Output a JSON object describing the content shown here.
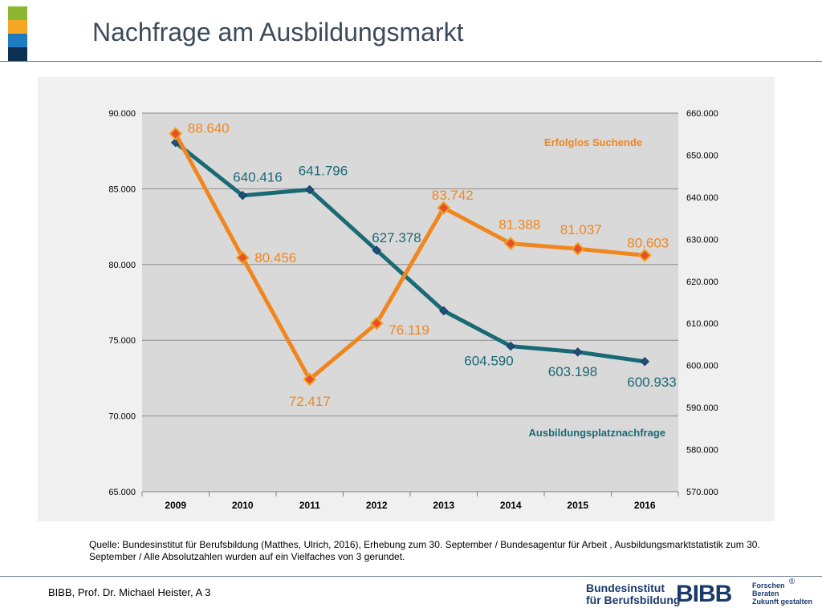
{
  "header": {
    "title": "Nachfrage am Ausbildungsmarkt"
  },
  "brand_colors": [
    "#8db631",
    "#f5a623",
    "#1e7bc2",
    "#0b3050"
  ],
  "chart_data": {
    "type": "line",
    "categories": [
      "2009",
      "2010",
      "2011",
      "2012",
      "2013",
      "2014",
      "2015",
      "2016"
    ],
    "y_left": {
      "ylim": [
        65000,
        90000
      ],
      "ticks": [
        "65.000",
        "70.000",
        "75.000",
        "80.000",
        "85.000",
        "90.000"
      ]
    },
    "y_right": {
      "ylim": [
        570000,
        660000
      ],
      "ticks": [
        "570.000",
        "580.000",
        "590.000",
        "600.000",
        "610.000",
        "620.000",
        "630.000",
        "640.000",
        "650.000",
        "660.000"
      ]
    },
    "grid": "horizontal",
    "series": [
      {
        "name": "Erfolglos Suchende",
        "axis": "left",
        "color": "#f0861e",
        "values": [
          88640,
          80456,
          72417,
          76119,
          83742,
          81388,
          81037,
          80603
        ],
        "labels": [
          "88.640",
          "80.456",
          "72.417",
          "76.119",
          "83.742",
          "81.388",
          "81.037",
          "80.603"
        ]
      },
      {
        "name": "Ausbildungsplatznachfrage",
        "axis": "right",
        "color": "#1a6a75",
        "values": [
          653000,
          640416,
          641796,
          627378,
          613000,
          604590,
          603198,
          600933
        ],
        "labels": [
          "",
          "640.416",
          "641.796",
          "627.378",
          "",
          "604.590",
          "603.198",
          "600.933"
        ]
      }
    ]
  },
  "source": "Quelle: Bundesinstitut für Berufsbildung (Matthes, Ulrich, 2016), Erhebung zum 30. September / Bundesagentur für Arbeit , Ausbildungsmarktstatistik zum 30. September / Alle Absolutzahlen wurden auf ein Vielfaches von 3 gerundet.",
  "footer": {
    "author": "BIBB, Prof. Dr. Michael Heister, A 3"
  },
  "logo": {
    "line1": "Bundesinstitut",
    "line2": "für Berufsbildung",
    "mark": "BIBB",
    "tag1": "Forschen",
    "tag2": "Beraten",
    "tag3": "Zukunft gestalten",
    "reg": "®"
  }
}
